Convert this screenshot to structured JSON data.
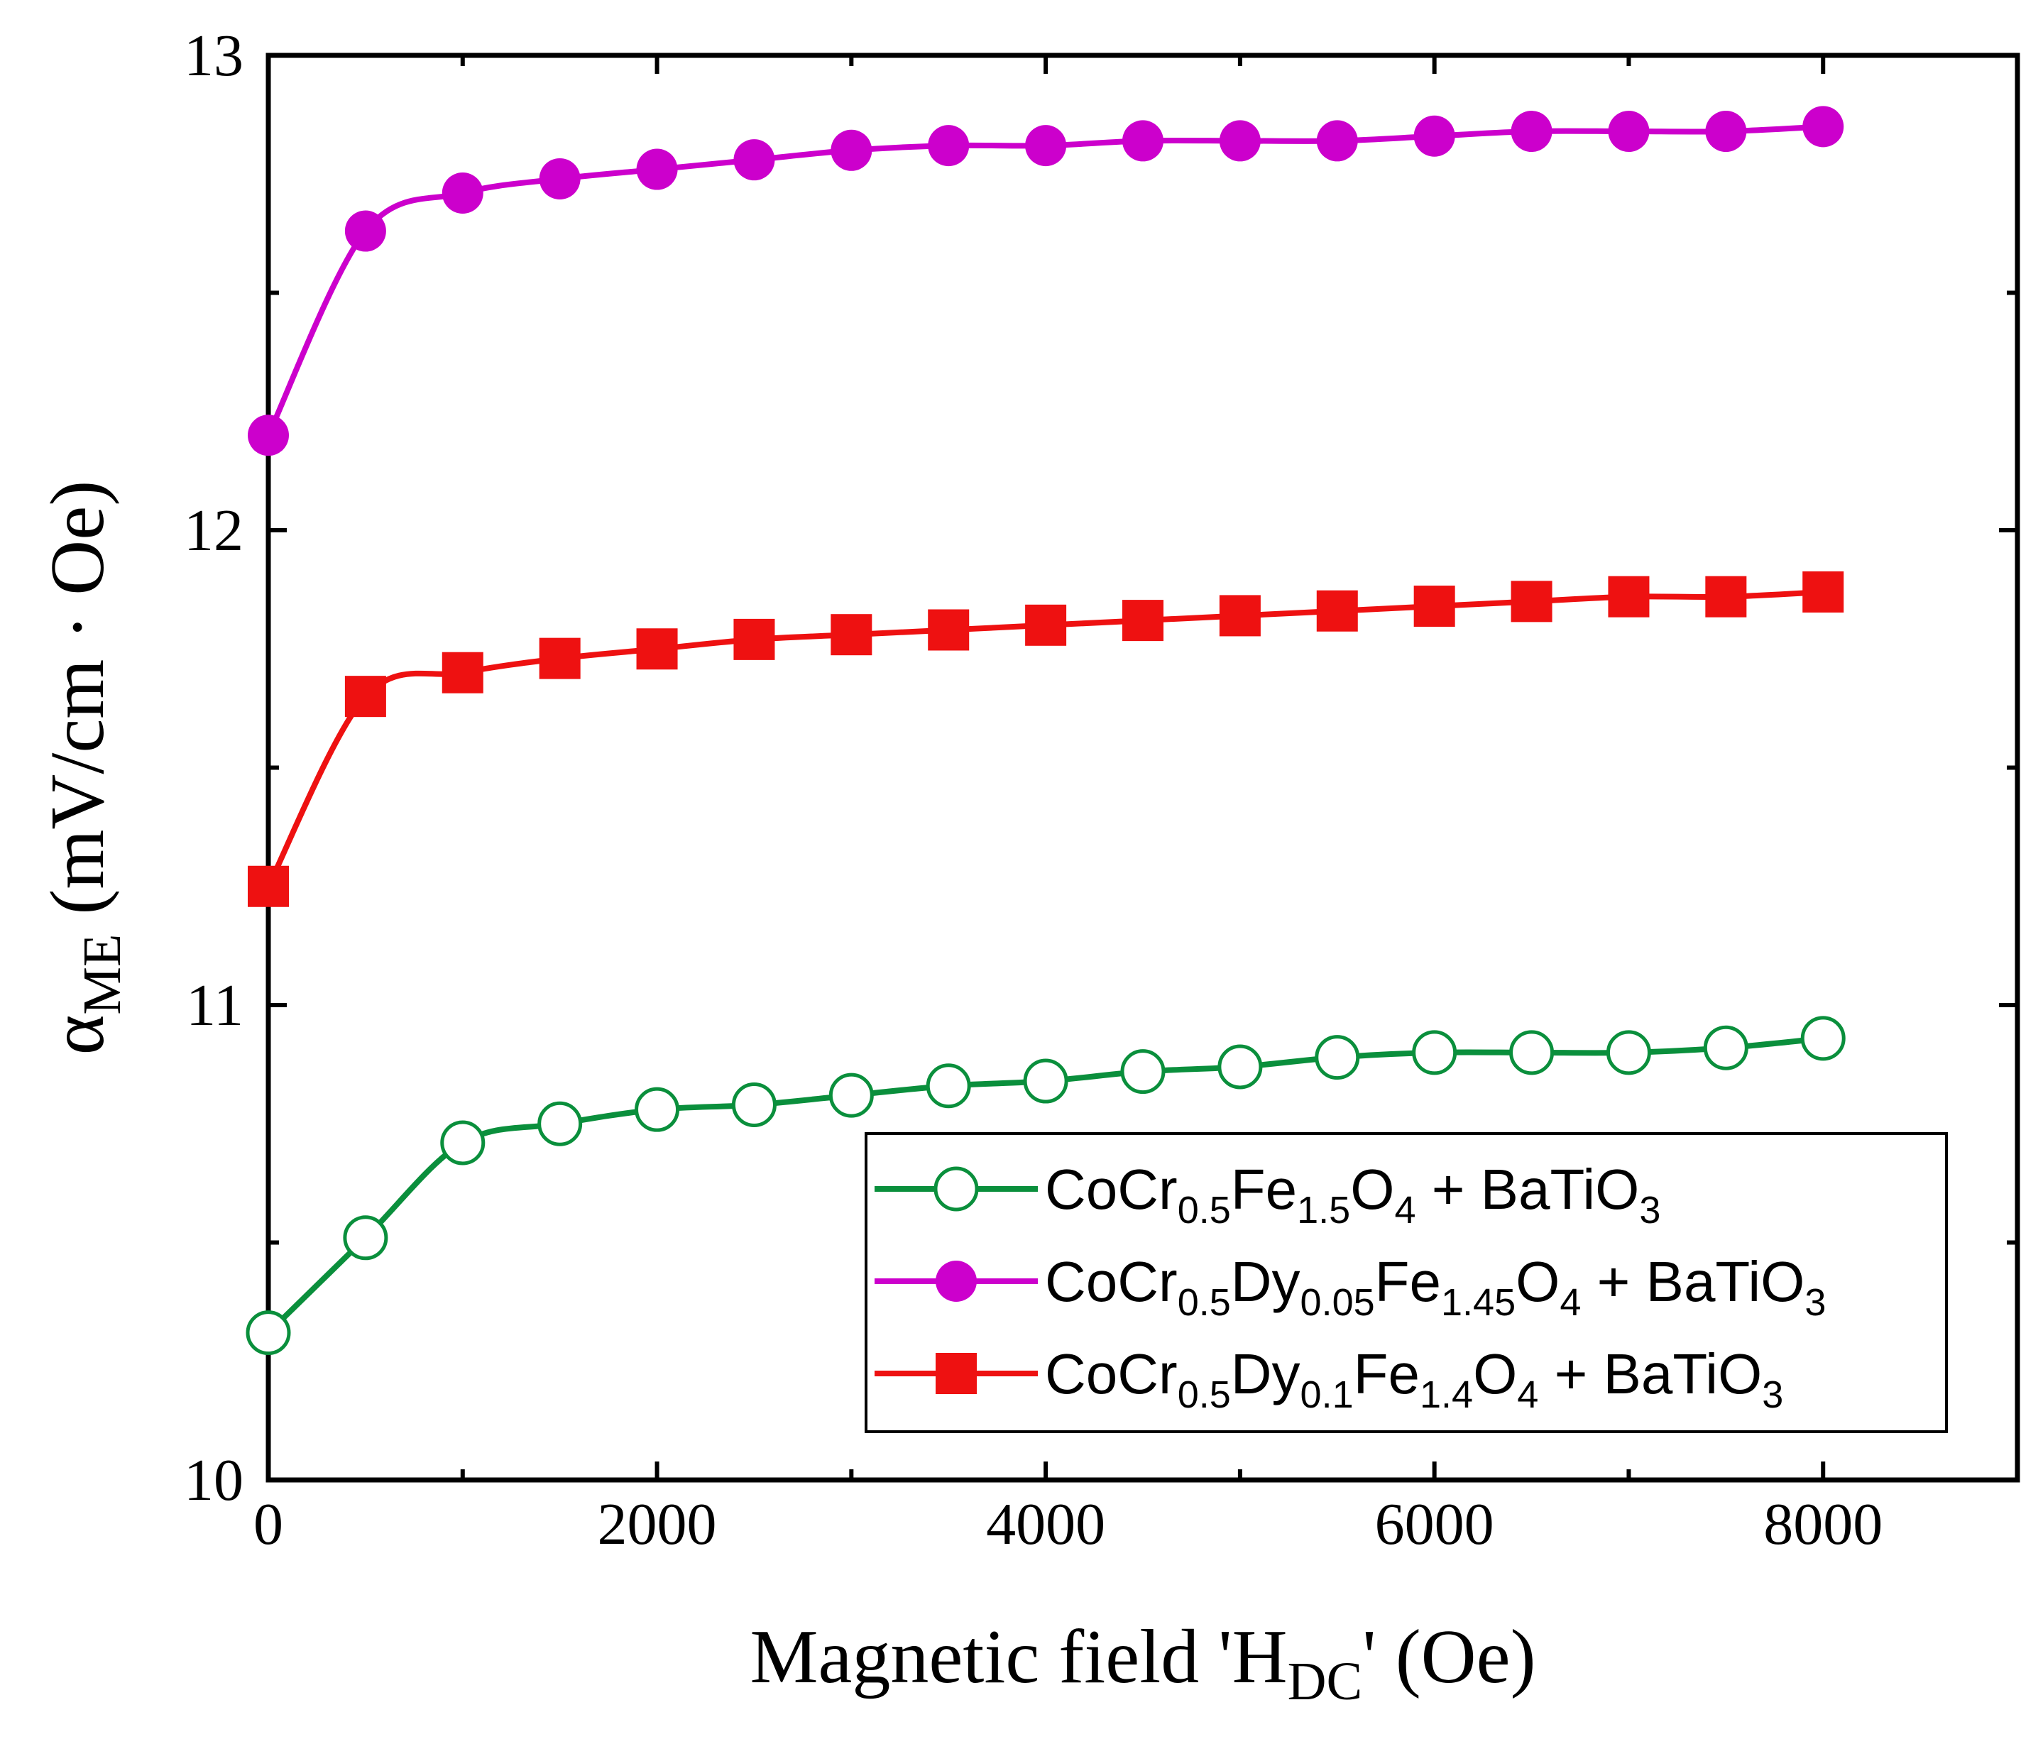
{
  "chart_data": {
    "type": "line",
    "xlabel": {
      "main": "Magnetic field 'H",
      "sub": "DC",
      "tail": "' (Oe)"
    },
    "ylabel": {
      "main": "α",
      "sub": "ME",
      "tail": " (mV/cm · Oe)"
    },
    "xlim": [
      0,
      9000
    ],
    "ylim": [
      10,
      13
    ],
    "x_ticks": [
      0,
      2000,
      4000,
      6000,
      8000
    ],
    "x_tick_labels": [
      "0",
      "2000",
      "4000",
      "6000",
      "8000"
    ],
    "x_minor_ticks": [
      1000,
      3000,
      5000,
      7000,
      9000
    ],
    "y_ticks": [
      10,
      11,
      12,
      13
    ],
    "y_tick_labels": [
      "10",
      "11",
      "12",
      "13"
    ],
    "y_minor_ticks": [
      10.5,
      11.5,
      12.5
    ],
    "grid": false,
    "legend_position": "bottom-right",
    "x": [
      0,
      500,
      1000,
      1500,
      2000,
      2500,
      3000,
      3500,
      4000,
      4500,
      5000,
      5500,
      6000,
      6500,
      7000,
      7500,
      8000
    ],
    "series": [
      {
        "name": "CoCr0.5Fe1.5O4 + BaTiO3",
        "label_parts": [
          {
            "t": "CoCr",
            "sub": false
          },
          {
            "t": "0.5",
            "sub": true
          },
          {
            "t": "Fe",
            "sub": false
          },
          {
            "t": "1.5",
            "sub": true
          },
          {
            "t": "O",
            "sub": false
          },
          {
            "t": "4",
            "sub": true
          },
          {
            "t": " + BaTiO",
            "sub": false
          },
          {
            "t": "3",
            "sub": true
          }
        ],
        "color": "#0a8f3c",
        "marker": "open-circle",
        "values": [
          10.31,
          10.51,
          10.71,
          10.75,
          10.78,
          10.79,
          10.81,
          10.83,
          10.84,
          10.86,
          10.87,
          10.89,
          10.9,
          10.9,
          10.9,
          10.91,
          10.93
        ]
      },
      {
        "name": "CoCr0.5Dy0.05Fe1.45O4 + BaTiO3",
        "label_parts": [
          {
            "t": "CoCr",
            "sub": false
          },
          {
            "t": "0.5",
            "sub": true
          },
          {
            "t": "Dy",
            "sub": false
          },
          {
            "t": "0.05",
            "sub": true
          },
          {
            "t": "Fe",
            "sub": false
          },
          {
            "t": "1.45",
            "sub": true
          },
          {
            "t": "O",
            "sub": false
          },
          {
            "t": "4",
            "sub": true
          },
          {
            "t": " + BaTiO",
            "sub": false
          },
          {
            "t": "3",
            "sub": true
          }
        ],
        "color": "#cc00cc",
        "marker": "filled-circle",
        "values": [
          12.2,
          12.63,
          12.71,
          12.74,
          12.76,
          12.78,
          12.8,
          12.81,
          12.81,
          12.82,
          12.82,
          12.82,
          12.83,
          12.84,
          12.84,
          12.84,
          12.85
        ]
      },
      {
        "name": "CoCr0.5Dy0.1Fe1.4O4 + BaTiO3",
        "label_parts": [
          {
            "t": "CoCr",
            "sub": false
          },
          {
            "t": "0.5",
            "sub": true
          },
          {
            "t": "Dy",
            "sub": false
          },
          {
            "t": "0.1",
            "sub": true
          },
          {
            "t": "Fe",
            "sub": false
          },
          {
            "t": "1.4",
            "sub": true
          },
          {
            "t": "O",
            "sub": false
          },
          {
            "t": "4",
            "sub": true
          },
          {
            "t": " + BaTiO",
            "sub": false
          },
          {
            "t": "3",
            "sub": true
          }
        ],
        "color": "#ee1111",
        "marker": "filled-square",
        "values": [
          11.25,
          11.65,
          11.7,
          11.73,
          11.75,
          11.77,
          11.78,
          11.79,
          11.8,
          11.81,
          11.82,
          11.83,
          11.84,
          11.85,
          11.86,
          11.86,
          11.87
        ]
      }
    ]
  }
}
